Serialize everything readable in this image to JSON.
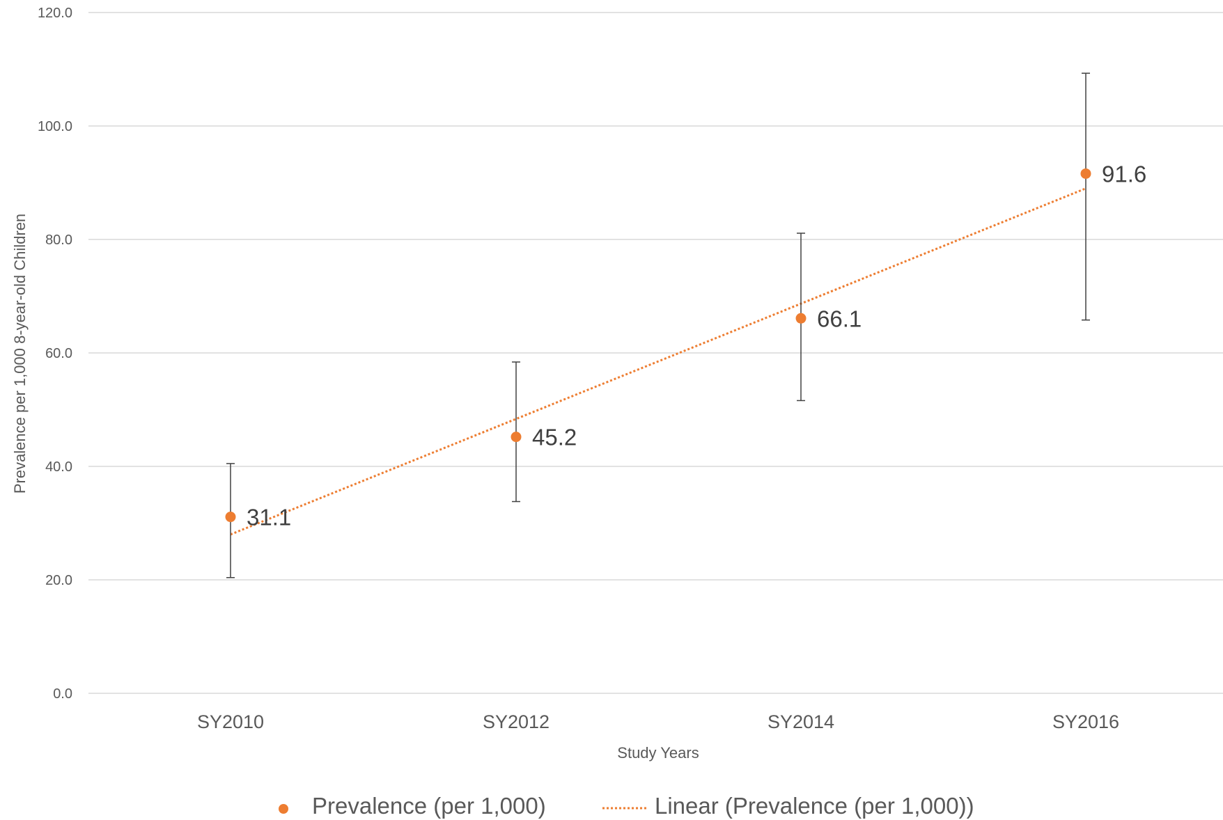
{
  "chart_data": {
    "type": "scatter",
    "categories": [
      "SY2010",
      "SY2012",
      "SY2014",
      "SY2016"
    ],
    "series": [
      {
        "name": "Prevalence (per 1,000)",
        "values": [
          31.1,
          45.2,
          66.1,
          91.6
        ],
        "error_low": [
          20.4,
          33.8,
          51.6,
          65.8
        ],
        "error_high": [
          40.5,
          58.4,
          81.1,
          109.3
        ],
        "data_labels": [
          "31.1",
          "45.2",
          "66.1",
          "91.6"
        ],
        "color": "#ED7D31",
        "marker": "circle"
      },
      {
        "name": "Linear (Prevalence (per 1,000))",
        "type": "trendline-linear",
        "start": 28.0,
        "end": 89.0,
        "color": "#ED7D31",
        "line_style": "dotted"
      }
    ],
    "title": "",
    "xlabel": "Study Years",
    "ylabel": "Prevalence per 1,000 8-year-old Children",
    "ylim": [
      0,
      120
    ],
    "yticks": [
      "0.0",
      "20.0",
      "40.0",
      "60.0",
      "80.0",
      "100.0",
      "120.0"
    ],
    "ytick_values": [
      0,
      20,
      40,
      60,
      80,
      100,
      120
    ],
    "grid": true,
    "legend_position": "bottom",
    "colors": {
      "gridline": "#D9D9D9",
      "errorbar": "#404040",
      "series": "#ED7D31"
    }
  }
}
